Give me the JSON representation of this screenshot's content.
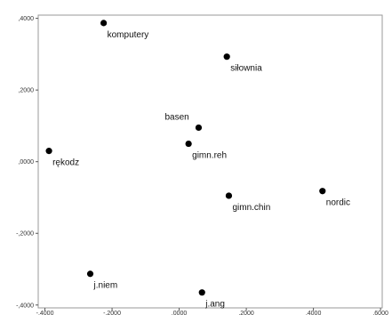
{
  "chart_data": {
    "type": "scatter",
    "title": "",
    "xlabel": "",
    "ylabel": "",
    "xlim": [
      -4200,
      6050
    ],
    "ylim": [
      -0.408,
      0.409
    ],
    "grid": false,
    "legend": "none",
    "x_ticks": [
      {
        "value": -4000,
        "label": "-,4000"
      },
      {
        "value": -2000,
        "label": "-,2000"
      },
      {
        "value": 0,
        "label": ",0000"
      },
      {
        "value": 2000,
        "label": ",2000"
      },
      {
        "value": 4000,
        "label": ",4000"
      },
      {
        "value": 6000,
        "label": ",6000"
      }
    ],
    "y_ticks": [
      {
        "value": 0.4,
        "label": ",4000"
      },
      {
        "value": 0.2,
        "label": ",2000"
      },
      {
        "value": 0.0,
        "label": ",0000"
      },
      {
        "value": -0.2,
        "label": "-,2000"
      },
      {
        "value": -0.4,
        "label": "-,4000"
      }
    ],
    "points": [
      {
        "label": "komputery",
        "x": -2250,
        "y": 0.387,
        "label_dx": 4,
        "label_dy": 16
      },
      {
        "label": "siłownia",
        "x": 1420,
        "y": 0.293,
        "label_dx": 4,
        "label_dy": 16
      },
      {
        "label": "basen",
        "x": 580,
        "y": 0.095,
        "label_dx": -38,
        "label_dy": -9
      },
      {
        "label": "gimn.reh",
        "x": 280,
        "y": 0.05,
        "label_dx": 4,
        "label_dy": 16
      },
      {
        "label": "rękodz",
        "x": -3880,
        "y": 0.03,
        "label_dx": 4,
        "label_dy": 16
      },
      {
        "label": "nordic",
        "x": 4270,
        "y": -0.082,
        "label_dx": 4,
        "label_dy": 16
      },
      {
        "label": "gimn.chin",
        "x": 1480,
        "y": -0.095,
        "label_dx": 4,
        "label_dy": 16
      },
      {
        "label": "j.niem",
        "x": -2650,
        "y": -0.313,
        "label_dx": 4,
        "label_dy": 16
      },
      {
        "label": "j.ang",
        "x": 680,
        "y": -0.365,
        "label_dx": 4,
        "label_dy": 16
      }
    ],
    "colors": {
      "marker": "#000000",
      "axis": "#555555",
      "frame": "#999999"
    }
  }
}
